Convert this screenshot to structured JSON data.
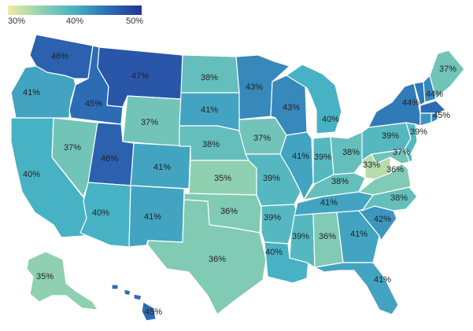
{
  "legend": {
    "min_label": "30%",
    "mid_label": "40%",
    "max_label": "50%",
    "min_value": 30,
    "max_value": 50,
    "colors": [
      "#f3eca2",
      "#8fd0b0",
      "#47b2c4",
      "#2c6cb5",
      "#253494"
    ]
  },
  "states": [
    {
      "id": "WA",
      "label": "46%",
      "value": 46
    },
    {
      "id": "OR",
      "label": "41%",
      "value": 41
    },
    {
      "id": "CA",
      "label": "40%",
      "value": 40
    },
    {
      "id": "ID",
      "label": "45%",
      "value": 45
    },
    {
      "id": "NV",
      "label": "37%",
      "value": 37
    },
    {
      "id": "MT",
      "label": "47%",
      "value": 47
    },
    {
      "id": "WY",
      "label": "37%",
      "value": 37
    },
    {
      "id": "UT",
      "label": "46%",
      "value": 46
    },
    {
      "id": "AZ",
      "label": "40%",
      "value": 40
    },
    {
      "id": "CO",
      "label": "41%",
      "value": 41
    },
    {
      "id": "NM",
      "label": "41%",
      "value": 41
    },
    {
      "id": "ND",
      "label": "38%",
      "value": 38
    },
    {
      "id": "SD",
      "label": "41%",
      "value": 41
    },
    {
      "id": "NE",
      "label": "38%",
      "value": 38
    },
    {
      "id": "KS",
      "label": "35%",
      "value": 35
    },
    {
      "id": "OK",
      "label": "36%",
      "value": 36
    },
    {
      "id": "TX",
      "label": "36%",
      "value": 36
    },
    {
      "id": "MN",
      "label": "43%",
      "value": 43
    },
    {
      "id": "IA",
      "label": "37%",
      "value": 37
    },
    {
      "id": "MO",
      "label": "39%",
      "value": 39
    },
    {
      "id": "AR",
      "label": "39%",
      "value": 39
    },
    {
      "id": "LA",
      "label": "40%",
      "value": 40
    },
    {
      "id": "WI",
      "label": "43%",
      "value": 43
    },
    {
      "id": "IL",
      "label": "41%",
      "value": 41
    },
    {
      "id": "MI",
      "label": "40%",
      "value": 40
    },
    {
      "id": "IN",
      "label": "39%",
      "value": 39
    },
    {
      "id": "OH",
      "label": "38%",
      "value": 38
    },
    {
      "id": "KY",
      "label": "38%",
      "value": 38
    },
    {
      "id": "TN",
      "label": "41%",
      "value": 41
    },
    {
      "id": "MS",
      "label": "39%",
      "value": 39
    },
    {
      "id": "AL",
      "label": "36%",
      "value": 36
    },
    {
      "id": "GA",
      "label": "41%",
      "value": 41
    },
    {
      "id": "FL",
      "label": "41%",
      "value": 41
    },
    {
      "id": "SC",
      "label": "42%",
      "value": 42
    },
    {
      "id": "NC",
      "label": "38%",
      "value": 38
    },
    {
      "id": "VA",
      "label": "36%",
      "value": 36
    },
    {
      "id": "WV",
      "label": "33%",
      "value": 33
    },
    {
      "id": "MD",
      "label": "37%",
      "value": 37
    },
    {
      "id": "PA",
      "label": "39%",
      "value": 39
    },
    {
      "id": "NJ",
      "label": "39%",
      "value": 39
    },
    {
      "id": "NY",
      "label": "44%",
      "value": 44
    },
    {
      "id": "VT",
      "label": "44%",
      "value": 44
    },
    {
      "id": "MA",
      "label": "45%",
      "value": 45
    },
    {
      "id": "ME",
      "label": "37%",
      "value": 37
    },
    {
      "id": "AK",
      "label": "35%",
      "value": 35
    },
    {
      "id": "HI",
      "label": "45%",
      "value": 45
    },
    {
      "id": "NH",
      "label": "",
      "value": 43
    },
    {
      "id": "CT",
      "label": "",
      "value": 42
    },
    {
      "id": "RI",
      "label": "",
      "value": 43
    },
    {
      "id": "DE",
      "label": "",
      "value": 39
    }
  ]
}
